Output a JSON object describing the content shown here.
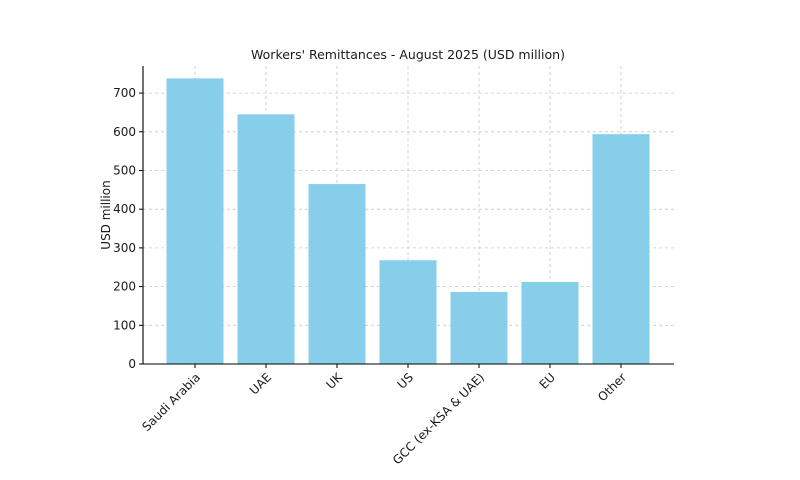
{
  "chart_data": {
    "type": "bar",
    "title": "Workers' Remittances - August 2025 (USD million)",
    "xlabel": "",
    "ylabel": "USD million",
    "categories": [
      "Saudi Arabia",
      "UAE",
      "UK",
      "US",
      "GCC (ex-KSA & UAE)",
      "EU",
      "Other"
    ],
    "values": [
      738,
      645,
      465,
      268,
      186,
      212,
      594
    ],
    "ylim": [
      0,
      770
    ],
    "yticks": [
      0,
      100,
      200,
      300,
      400,
      500,
      600,
      700
    ],
    "grid": true,
    "bar_color": "#87CEEB"
  }
}
